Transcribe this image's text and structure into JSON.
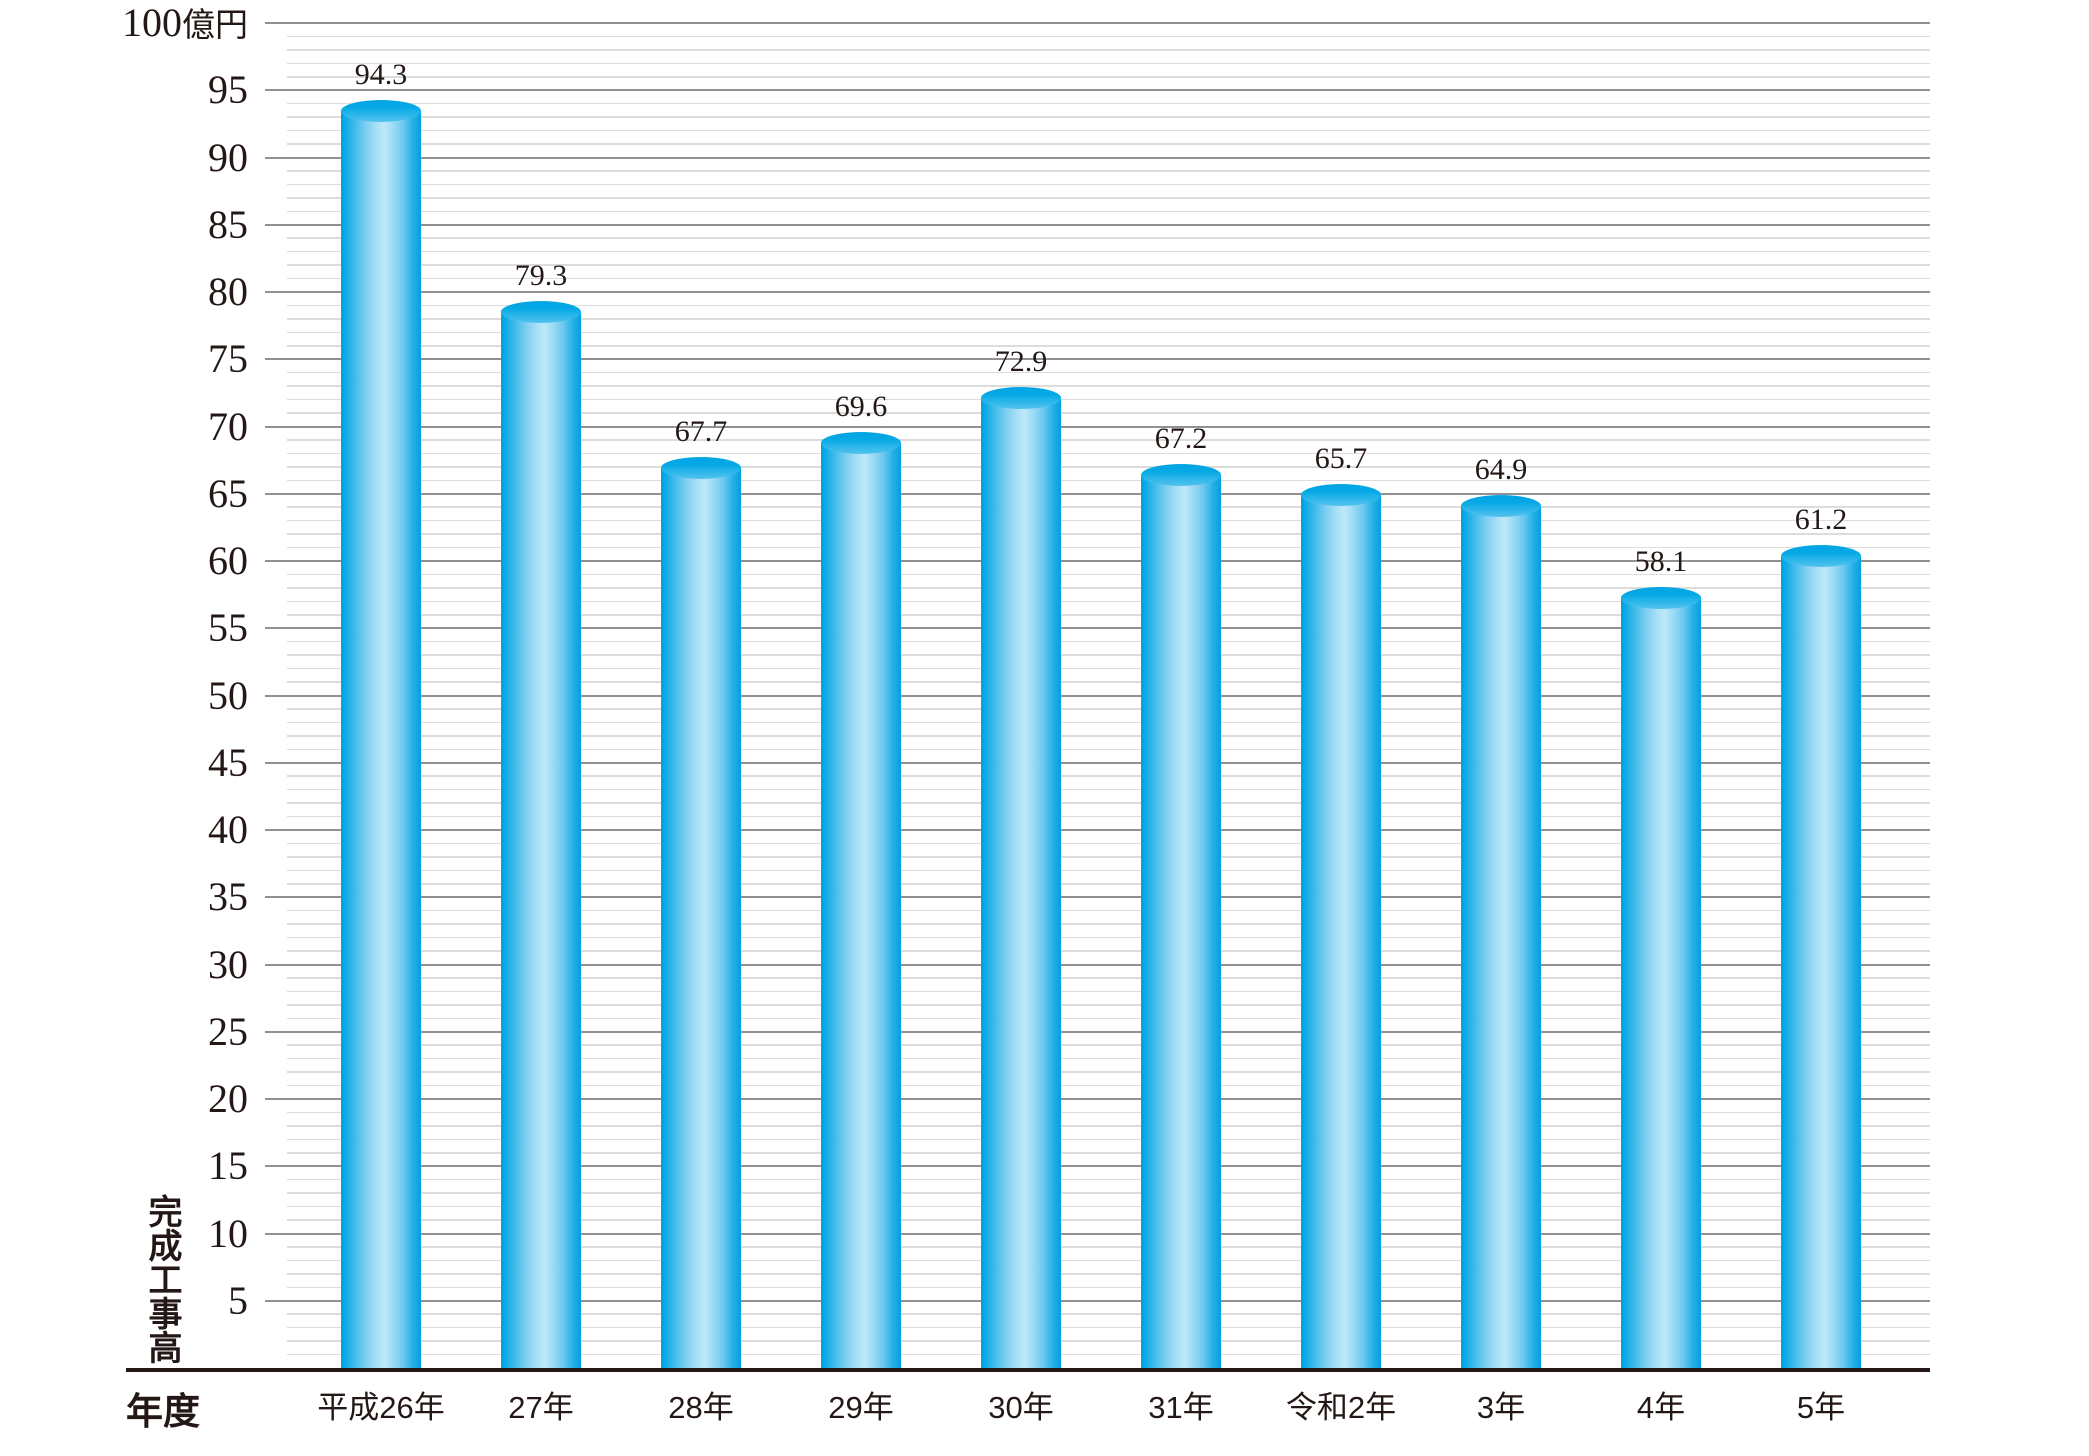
{
  "chart_data": {
    "type": "bar",
    "style": "3d-cylinder-bars",
    "title": "",
    "unit_label": {
      "value": "100",
      "unit": "億円"
    },
    "ylabel": "完成工事高",
    "xlabel": "年度",
    "categories": [
      "平成26年",
      "27年",
      "28年",
      "29年",
      "30年",
      "31年",
      "令和2年",
      "3年",
      "4年",
      "5年"
    ],
    "values": [
      94.3,
      79.3,
      67.7,
      69.6,
      72.9,
      67.2,
      65.7,
      64.9,
      58.1,
      61.2
    ],
    "value_labels": [
      "94.3",
      "79.3",
      "67.7",
      "69.6",
      "72.9",
      "67.2",
      "65.7",
      "64.9",
      "58.1",
      "61.2"
    ],
    "ylim": [
      0,
      100
    ],
    "yticks": [
      5,
      10,
      15,
      20,
      25,
      30,
      35,
      40,
      45,
      50,
      55,
      60,
      65,
      70,
      75,
      80,
      85,
      90,
      95
    ],
    "ytick_step": 5,
    "minor_grid_step": 1,
    "grid": "horizontal major and minor, no vertical axis line",
    "legend": "none",
    "colors": {
      "bar_edge": "#00a2e0",
      "bar_highlight": "#bce9f9",
      "bar_top": "#06a9e5",
      "major_grid": "#919191",
      "minor_grid": "#dcdcdc",
      "axis_line": "#231815",
      "text": "#231815"
    }
  }
}
